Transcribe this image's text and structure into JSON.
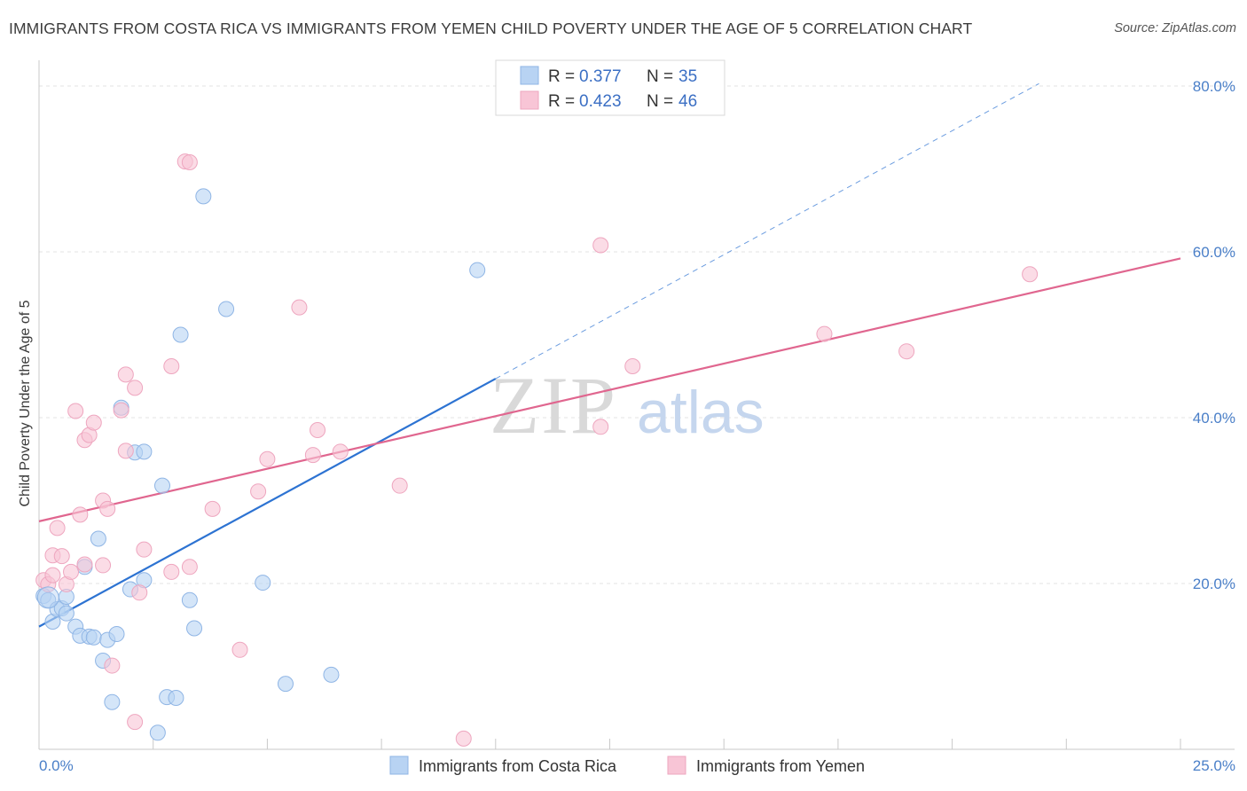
{
  "title": "IMMIGRANTS FROM COSTA RICA VS IMMIGRANTS FROM YEMEN CHILD POVERTY UNDER THE AGE OF 5 CORRELATION CHART",
  "source": "Source: ZipAtlas.com",
  "watermark": {
    "zip": "ZIP",
    "atlas": "atlas"
  },
  "legend": {
    "r_label": "R =",
    "n_label": "N =",
    "rows": [
      {
        "r": "0.377",
        "n": "35"
      },
      {
        "r": "0.423",
        "n": "46"
      }
    ]
  },
  "colors": {
    "blue_fill": "#b8d3f3",
    "blue_stroke": "#8fb5e5",
    "blue_line": "#2d73d2",
    "pink_fill": "#f8c5d6",
    "pink_stroke": "#eea6bf",
    "pink_line": "#e0668f",
    "tick": "#4a7fc8",
    "grid": "#e3e3e3"
  },
  "chart_data": {
    "type": "scatter",
    "title": "IMMIGRANTS FROM COSTA RICA VS IMMIGRANTS FROM YEMEN CHILD POVERTY UNDER THE AGE OF 5 CORRELATION CHART",
    "xlabel": "",
    "ylabel": "Child Poverty Under the Age of 5",
    "xlim": [
      0,
      25
    ],
    "ylim": [
      0,
      80
    ],
    "x_tick_labels": [
      "0.0%",
      "25.0%"
    ],
    "y_ticks": [
      20,
      40,
      60,
      80
    ],
    "y_tick_labels": [
      "20.0%",
      "40.0%",
      "60.0%",
      "80.0%"
    ],
    "series": [
      {
        "name": "Immigrants from Costa Rica",
        "color": "#b8d3f3",
        "points": [
          [
            0.1,
            18.5
          ],
          [
            0.2,
            18.0
          ],
          [
            0.3,
            15.4
          ],
          [
            0.4,
            16.9
          ],
          [
            0.5,
            17.0
          ],
          [
            0.6,
            16.4
          ],
          [
            0.6,
            18.4
          ],
          [
            0.8,
            14.8
          ],
          [
            0.9,
            13.7
          ],
          [
            1.0,
            22.0
          ],
          [
            1.1,
            13.6
          ],
          [
            1.2,
            13.5
          ],
          [
            1.3,
            25.4
          ],
          [
            1.4,
            10.7
          ],
          [
            1.5,
            13.2
          ],
          [
            1.6,
            5.7
          ],
          [
            1.7,
            13.9
          ],
          [
            1.8,
            41.2
          ],
          [
            2.0,
            19.3
          ],
          [
            2.1,
            35.8
          ],
          [
            2.3,
            35.9
          ],
          [
            2.3,
            20.4
          ],
          [
            2.6,
            2.0
          ],
          [
            2.7,
            31.8
          ],
          [
            2.8,
            6.3
          ],
          [
            3.0,
            6.2
          ],
          [
            3.1,
            50.0
          ],
          [
            3.3,
            18.0
          ],
          [
            3.4,
            14.6
          ],
          [
            3.6,
            66.7
          ],
          [
            4.1,
            53.1
          ],
          [
            4.9,
            20.1
          ],
          [
            5.4,
            7.9
          ],
          [
            6.4,
            9.0
          ],
          [
            9.6,
            57.8
          ]
        ]
      },
      {
        "name": "Immigrants from Yemen",
        "color": "#f8c5d6",
        "points": [
          [
            0.1,
            20.4
          ],
          [
            0.2,
            19.9
          ],
          [
            0.3,
            23.4
          ],
          [
            0.3,
            21.0
          ],
          [
            0.4,
            26.7
          ],
          [
            0.5,
            23.3
          ],
          [
            0.6,
            19.9
          ],
          [
            0.7,
            21.4
          ],
          [
            0.8,
            40.8
          ],
          [
            0.9,
            28.3
          ],
          [
            1.0,
            22.3
          ],
          [
            1.0,
            37.3
          ],
          [
            1.1,
            37.9
          ],
          [
            1.2,
            39.4
          ],
          [
            1.4,
            22.2
          ],
          [
            1.4,
            30.0
          ],
          [
            1.5,
            29.0
          ],
          [
            1.6,
            10.1
          ],
          [
            1.8,
            40.9
          ],
          [
            1.9,
            36.0
          ],
          [
            1.9,
            45.2
          ],
          [
            2.1,
            3.3
          ],
          [
            2.1,
            43.6
          ],
          [
            2.2,
            18.9
          ],
          [
            2.3,
            24.1
          ],
          [
            2.9,
            21.4
          ],
          [
            2.9,
            46.2
          ],
          [
            3.2,
            70.9
          ],
          [
            3.3,
            70.8
          ],
          [
            3.3,
            22.0
          ],
          [
            3.8,
            29.0
          ],
          [
            4.4,
            12.0
          ],
          [
            4.8,
            31.1
          ],
          [
            5.0,
            35.0
          ],
          [
            5.7,
            53.3
          ],
          [
            6.0,
            35.5
          ],
          [
            6.1,
            38.5
          ],
          [
            6.6,
            35.9
          ],
          [
            7.9,
            31.8
          ],
          [
            9.3,
            1.3
          ],
          [
            12.3,
            60.8
          ],
          [
            12.3,
            38.9
          ],
          [
            13.0,
            46.2
          ],
          [
            17.2,
            50.1
          ],
          [
            19.0,
            48.0
          ],
          [
            21.7,
            57.3
          ]
        ]
      }
    ],
    "trend_lines": [
      {
        "series": "Immigrants from Costa Rica",
        "x0": 0,
        "y0": 14.8,
        "x1": 10,
        "y1": 44.7,
        "dashed_to_x": 21.9
      },
      {
        "series": "Immigrants from Yemen",
        "x0": 0,
        "y0": 27.5,
        "x1": 25,
        "y1": 59.2
      }
    ]
  },
  "bottom_legend": [
    "Immigrants from Costa Rica",
    "Immigrants from Yemen"
  ]
}
